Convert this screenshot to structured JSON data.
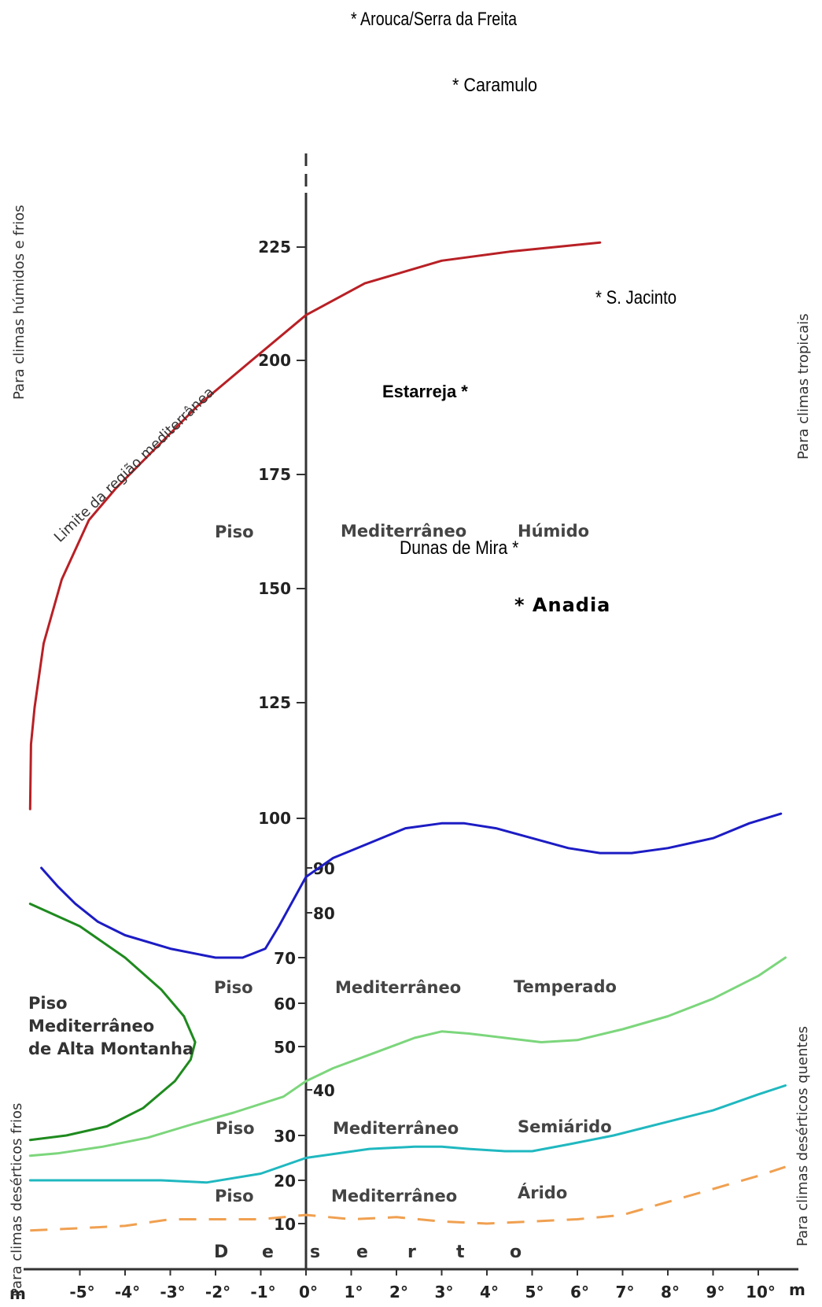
{
  "chart_data": {
    "type": "line",
    "x_unit": "m",
    "x_ticks": [
      "-5°",
      "-4°",
      "-3°",
      "-2°",
      "-1°",
      "0°",
      "1°",
      "2°",
      "3°",
      "4°",
      "5°",
      "6°",
      "7°",
      "8°",
      "9°",
      "10°"
    ],
    "y_ticks_upper": [
      "225",
      "200",
      "175",
      "150",
      "125",
      "100"
    ],
    "y_ticks_lower": [
      "90",
      "80",
      "70",
      "60",
      "50",
      "40",
      "30",
      "20",
      "10"
    ],
    "series": [
      {
        "key": "limit",
        "label": "Limite da região mediterrânea",
        "color": "#b82025",
        "style": "solid",
        "x": [
          -6.1,
          -6.08,
          -6.0,
          -5.8,
          -5.4,
          -4.8,
          -4.2,
          -3.4,
          -2.4,
          -1.2,
          0.0,
          1.3,
          3.0,
          4.5,
          6.5
        ],
        "y": [
          102,
          116,
          124,
          138,
          152,
          165,
          172,
          180,
          190,
          200,
          210,
          217,
          222,
          224,
          226
        ]
      },
      {
        "key": "humid",
        "color": "#1c1cc4",
        "style": "solid",
        "x": [
          -5.85,
          -5.5,
          -5.1,
          -4.6,
          -4.0,
          -3.0,
          -2.0,
          -1.4,
          -0.9,
          -0.6,
          0.0,
          0.6,
          1.4,
          2.2,
          3.0,
          3.5,
          4.2,
          5.0,
          5.8,
          6.5,
          7.2,
          8.0,
          9.0,
          9.8,
          10.5
        ],
        "y": [
          90,
          86,
          82,
          78,
          75,
          72,
          70,
          70,
          72,
          77,
          88,
          92,
          95,
          98,
          99,
          99,
          98,
          96,
          94,
          93,
          93,
          94,
          96,
          99,
          101
        ]
      },
      {
        "key": "temperate",
        "color": "#7cd67c",
        "style": "solid",
        "x": [
          -6.1,
          -5.5,
          -4.5,
          -3.5,
          -2.5,
          -1.6,
          -0.5,
          0.0,
          0.6,
          1.5,
          2.4,
          3.0,
          3.6,
          4.4,
          5.2,
          6.0,
          7.0,
          8.0,
          9.0,
          10.0,
          10.6
        ],
        "y": [
          25.5,
          26,
          27.5,
          29.5,
          32.5,
          35,
          38.5,
          42,
          45,
          48.5,
          52,
          53.5,
          53,
          52,
          51,
          51.5,
          54,
          57,
          61,
          66,
          70
        ]
      },
      {
        "key": "semiarid",
        "color": "#20b8c0",
        "style": "solid",
        "x": [
          -6.1,
          -5.2,
          -4.2,
          -3.2,
          -2.2,
          -1.0,
          0.0,
          1.4,
          2.4,
          3.0,
          3.6,
          4.4,
          5.0,
          5.8,
          6.8,
          8.0,
          9.0,
          10.0,
          10.6
        ],
        "y": [
          20,
          20,
          20,
          20,
          19.5,
          21.5,
          25,
          27,
          27.5,
          27.5,
          27,
          26.5,
          26.5,
          28,
          30,
          33,
          35.5,
          39,
          41
        ]
      },
      {
        "key": "desert-limit",
        "color": "#f0a050",
        "style": "dashed",
        "x": [
          -6.1,
          -5.0,
          -4.0,
          -3.0,
          -2.0,
          -1.0,
          0.0,
          1.0,
          2.0,
          3.0,
          4.0,
          5.0,
          6.0,
          7.0,
          8.0,
          9.0,
          10.0,
          10.6
        ],
        "y": [
          8.5,
          9,
          9.5,
          11,
          11,
          11,
          12,
          11,
          11.5,
          10.5,
          10,
          10.5,
          11,
          12,
          15,
          18,
          21,
          23
        ]
      },
      {
        "key": "alta-montanha",
        "color": "#1e8a1e",
        "style": "solid",
        "x": [
          -6.1,
          -5.0,
          -4.0,
          -3.2,
          -2.7,
          -2.45,
          -2.55,
          -2.9,
          -3.6,
          -4.4,
          -5.3,
          -6.1
        ],
        "y": [
          82,
          77,
          70,
          63,
          57,
          51,
          47,
          42,
          36,
          32,
          30,
          29
        ]
      }
    ],
    "zone_labels": {
      "humid": [
        "Piso",
        "Mediterrâneo",
        "Húmido"
      ],
      "temperate": [
        "Piso",
        "Mediterrâneo",
        "Temperado"
      ],
      "semiarid": [
        "Piso",
        "Mediterrâneo",
        "Semiárido"
      ],
      "arid": [
        "Piso",
        "Mediterrâneo",
        "Árido"
      ],
      "alta": [
        "Piso",
        "Mediterrâneo",
        "de Alta Montanha"
      ],
      "desert": [
        "D",
        "e",
        "s",
        "e",
        "r",
        "t",
        "o"
      ]
    },
    "sites": {
      "arouca": "* Arouca/Serra da Freita",
      "caramulo": "* Caramulo",
      "jacinto": "* S. Jacinto",
      "estarreja": "Estarreja *",
      "dunas": "Dunas de Mira *",
      "anadia": "* Anadia"
    },
    "side_labels": {
      "left_top": "Para climas húmidos e frios",
      "right_top": "Para climas tropicais",
      "left_bottom": "Para climas desérticos frios",
      "right_bottom": "Para climas desérticos quentes"
    }
  }
}
